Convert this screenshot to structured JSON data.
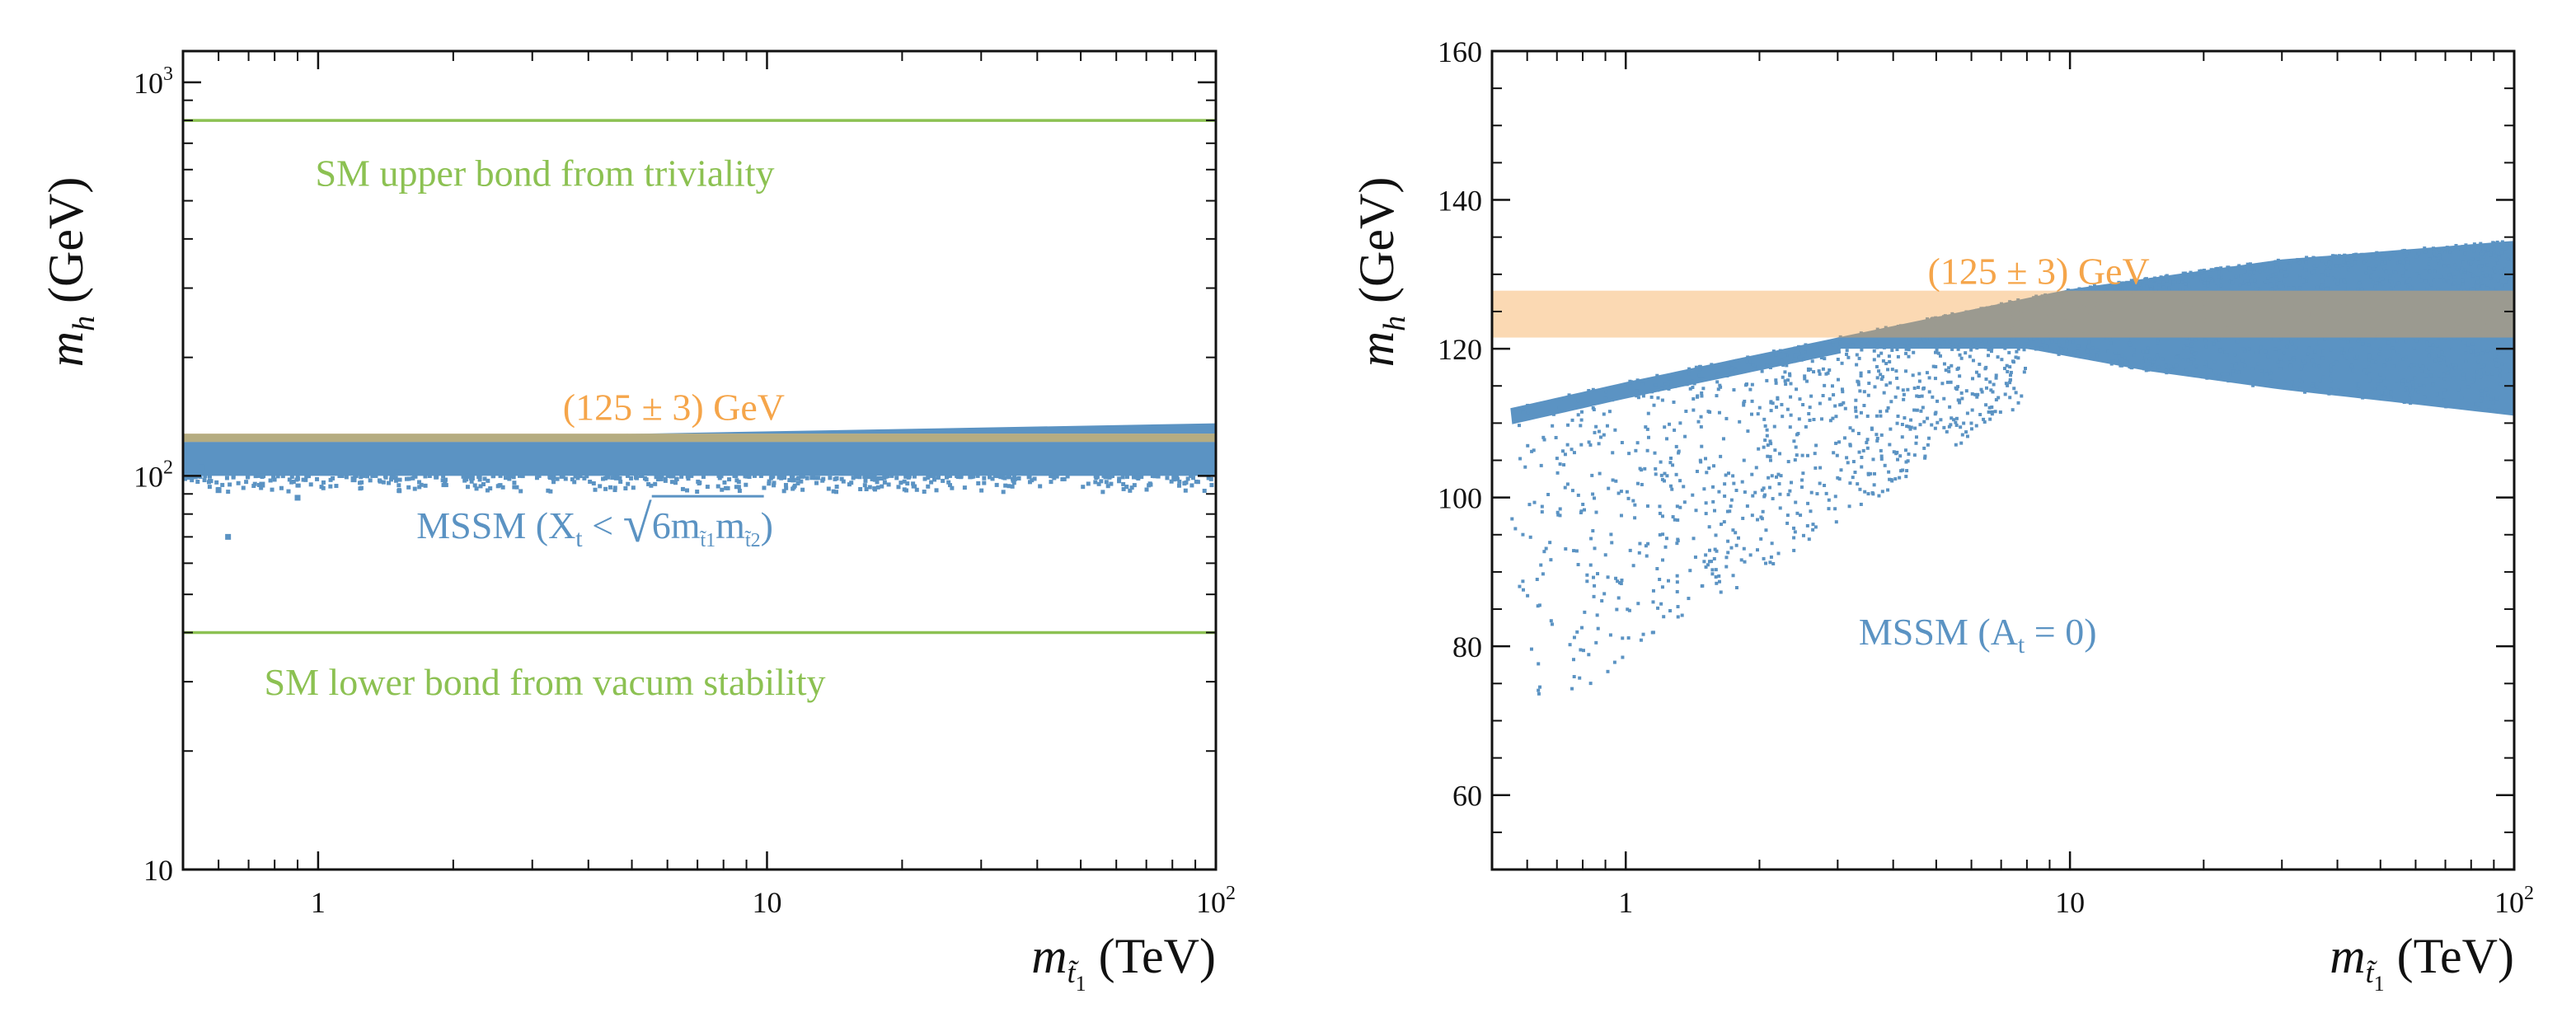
{
  "colors": {
    "green": "#8cc152",
    "orange": "#f5a54a",
    "band": "#fbd5a8",
    "blue": "#5b93c3",
    "overlap": "#a8a47a"
  },
  "chart_data": [
    {
      "type": "scatter",
      "ylabel": "m",
      "ylabel_sub": "h",
      "ylabel_unit": " (GeV)",
      "xlabel": "m",
      "xlabel_sub": "t̃",
      "xlabel_subsub": "1",
      "xlabel_unit": " (TeV)",
      "xscale": "log",
      "yscale": "log",
      "xlim": [
        0.5,
        100
      ],
      "ylim": [
        10,
        1200
      ],
      "xticks": [
        {
          "value": 1,
          "base": "1",
          "exp": ""
        },
        {
          "value": 10,
          "base": "10",
          "exp": ""
        },
        {
          "value": 100,
          "base": "10",
          "exp": "2"
        }
      ],
      "yticks": [
        {
          "value": 10,
          "base": "10",
          "exp": ""
        },
        {
          "value": 100,
          "base": "10",
          "exp": "2"
        },
        {
          "value": 1000,
          "base": "10",
          "exp": "3"
        }
      ],
      "hlines": [
        {
          "name": "SM upper bond",
          "y": 800,
          "label": "SM upper bond from triviality",
          "label_x": 3.2,
          "label_y": 590
        },
        {
          "name": "SM lower bond",
          "y": 40,
          "label": "SM lower bond from vacum stability",
          "label_x": 3.2,
          "label_y": 30
        }
      ],
      "band": {
        "y_low": 122,
        "y_high": 128,
        "label": "(125 ± 3) GeV",
        "label_x": 6.2,
        "label_y": 150
      },
      "mssm_region": {
        "x_start": 0.5,
        "x_end": 100,
        "y_top_start": 122,
        "y_top_end": 136,
        "y_bottom": 100
      },
      "mssm_label": {
        "prefix": "MSSM (X",
        "sub": "t",
        "mid": " < ",
        "root": "6m",
        "s1": "t̃1",
        "m2": "m",
        "s2": "t̃2",
        "suffix": ")",
        "x": 4.5,
        "y": 75
      },
      "outliers": [
        [
          0.63,
          70
        ],
        [
          0.6,
          92
        ],
        [
          0.75,
          95
        ],
        [
          0.9,
          88
        ],
        [
          1.2,
          98
        ],
        [
          0.55,
          105
        ],
        [
          1.5,
          102
        ],
        [
          2.2,
          99
        ],
        [
          3.5,
          100
        ]
      ]
    },
    {
      "type": "scatter",
      "ylabel": "m",
      "ylabel_sub": "h",
      "ylabel_unit": " (GeV)",
      "xlabel": "m",
      "xlabel_sub": "t̃",
      "xlabel_subsub": "1",
      "xlabel_unit": " (TeV)",
      "xscale": "log",
      "yscale": "linear",
      "xlim": [
        0.5,
        100
      ],
      "ylim": [
        50,
        160
      ],
      "xticks": [
        {
          "value": 1,
          "base": "1",
          "exp": ""
        },
        {
          "value": 10,
          "base": "10",
          "exp": ""
        },
        {
          "value": 100,
          "base": "10",
          "exp": "2"
        }
      ],
      "yticks": [
        {
          "value": 60,
          "base": "60",
          "exp": ""
        },
        {
          "value": 80,
          "base": "80",
          "exp": ""
        },
        {
          "value": 100,
          "base": "100",
          "exp": ""
        },
        {
          "value": 120,
          "base": "120",
          "exp": ""
        },
        {
          "value": 140,
          "base": "140",
          "exp": ""
        },
        {
          "value": 160,
          "base": "160",
          "exp": ""
        }
      ],
      "band": {
        "y_low": 121.5,
        "y_high": 127.8,
        "label": "(125 ± 3) GeV",
        "label_x": 8.5,
        "label_y": 130.5
      },
      "upper_envelope": [
        [
          0.55,
          112
        ],
        [
          1,
          115.5
        ],
        [
          3,
          121.5
        ],
        [
          10,
          128
        ],
        [
          30,
          132
        ],
        [
          100,
          134.5
        ]
      ],
      "lower_envelope": [
        [
          8,
          120
        ],
        [
          15,
          117
        ],
        [
          30,
          114.5
        ],
        [
          60,
          112.5
        ],
        [
          100,
          111
        ]
      ],
      "mssm_label": {
        "prefix": "MSSM (A",
        "sub": "t",
        "suffix": " = 0)",
        "x": 6.2,
        "y": 82
      }
    }
  ]
}
